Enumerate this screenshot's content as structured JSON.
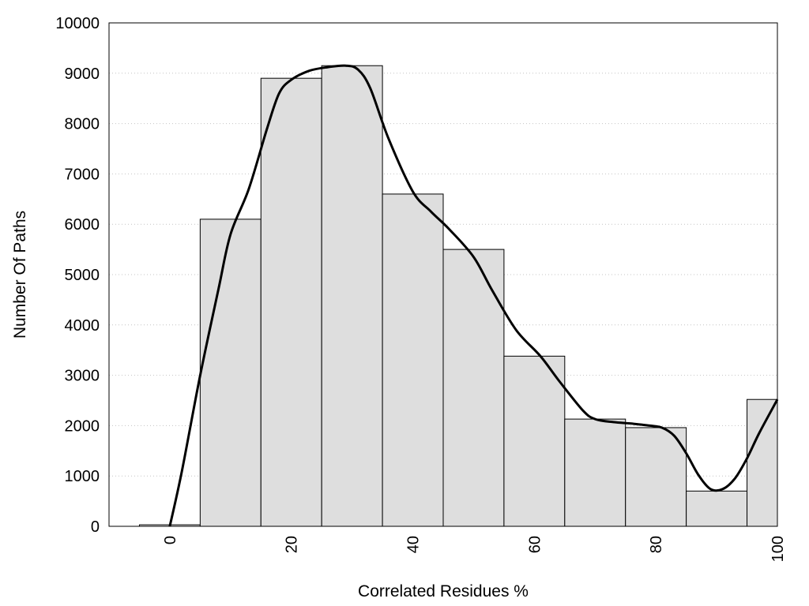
{
  "chart_data": {
    "type": "bar",
    "title": "",
    "xlabel": "Correlated Residues %",
    "ylabel": "Number Of Paths",
    "xlim": [
      -10,
      100
    ],
    "ylim": [
      0,
      10000
    ],
    "x_ticks": [
      0,
      20,
      40,
      60,
      80,
      100
    ],
    "y_ticks": [
      0,
      1000,
      2000,
      3000,
      4000,
      5000,
      6000,
      7000,
      8000,
      9000,
      10000
    ],
    "grid": "y-dotted",
    "legend": "none",
    "bin_width": 10,
    "bars": {
      "centers": [
        0,
        10,
        20,
        30,
        40,
        50,
        60,
        70,
        80,
        90,
        100
      ],
      "values": [
        30,
        6100,
        8900,
        9150,
        6600,
        5500,
        3380,
        2130,
        1960,
        700,
        2520
      ]
    },
    "curve": {
      "type": "line",
      "x": [
        0,
        2,
        5,
        8,
        10,
        13,
        16,
        18,
        20,
        23,
        26,
        29,
        31,
        33,
        36,
        40,
        43,
        46,
        50,
        53,
        57,
        61,
        64,
        68,
        70,
        73,
        76,
        79,
        81,
        83,
        85,
        87,
        89,
        91,
        93,
        95,
        97,
        100
      ],
      "y": [
        0,
        1100,
        3000,
        4700,
        5800,
        6700,
        7900,
        8600,
        8870,
        9050,
        9120,
        9150,
        9070,
        8700,
        7700,
        6650,
        6250,
        5900,
        5350,
        4700,
        3900,
        3380,
        2900,
        2300,
        2130,
        2070,
        2040,
        2000,
        1960,
        1800,
        1450,
        1020,
        740,
        740,
        950,
        1350,
        1850,
        2520
      ]
    },
    "colors": {
      "bar_fill": "#dedede",
      "bar_stroke": "#000000",
      "curve": "#000000",
      "grid": "#c4c4c4",
      "frame": "#000000"
    }
  }
}
